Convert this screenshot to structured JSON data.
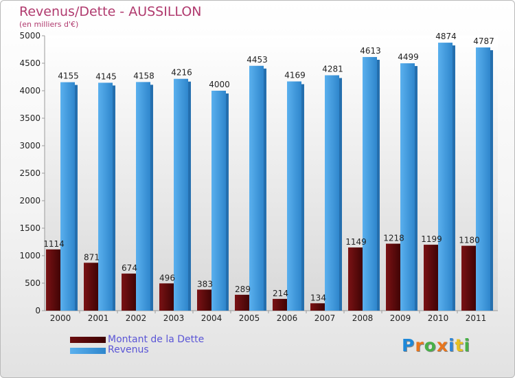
{
  "header": {
    "title": "Revenus/Dette - AUSSILLON",
    "subtitle": "(en milliers d'€)"
  },
  "legend": {
    "debt_label": "Montant de la Dette",
    "revenue_label": "Revenus"
  },
  "logo": {
    "text": "Proxiti",
    "letter_colors": [
      "#1e88d8",
      "#e8761e",
      "#48b048",
      "#e8761e",
      "#2f86d6",
      "#e8c020",
      "#48b048"
    ]
  },
  "colors": {
    "debt": "#6b0d0f",
    "debt_dark": "#3d0203",
    "revenue": "#4aa3e6",
    "revenue_dark": "#2a7fc4",
    "title": "#b03a6e",
    "legend_text": "#5a55d6"
  },
  "chart_data": {
    "type": "bar",
    "title": "Revenus/Dette - AUSSILLON",
    "subtitle": "(en milliers d'€)",
    "xlabel": "",
    "ylabel": "",
    "categories": [
      "2000",
      "2001",
      "2002",
      "2003",
      "2004",
      "2005",
      "2006",
      "2007",
      "2008",
      "2009",
      "2010",
      "2011"
    ],
    "series": [
      {
        "name": "Montant de la Dette",
        "values": [
          1114,
          871,
          674,
          496,
          383,
          289,
          214,
          134,
          1149,
          1218,
          1199,
          1180
        ]
      },
      {
        "name": "Revenus",
        "values": [
          4155,
          4145,
          4158,
          4216,
          4000,
          4453,
          4169,
          4281,
          4613,
          4499,
          4874,
          4787
        ]
      }
    ],
    "yticks": [
      "0",
      "500",
      "1000",
      "1500",
      "2000",
      "2500",
      "3000",
      "3500",
      "4000",
      "4500",
      "5000"
    ],
    "ylim": [
      0,
      5000
    ],
    "grid": false,
    "legend_position": "bottom-left"
  }
}
